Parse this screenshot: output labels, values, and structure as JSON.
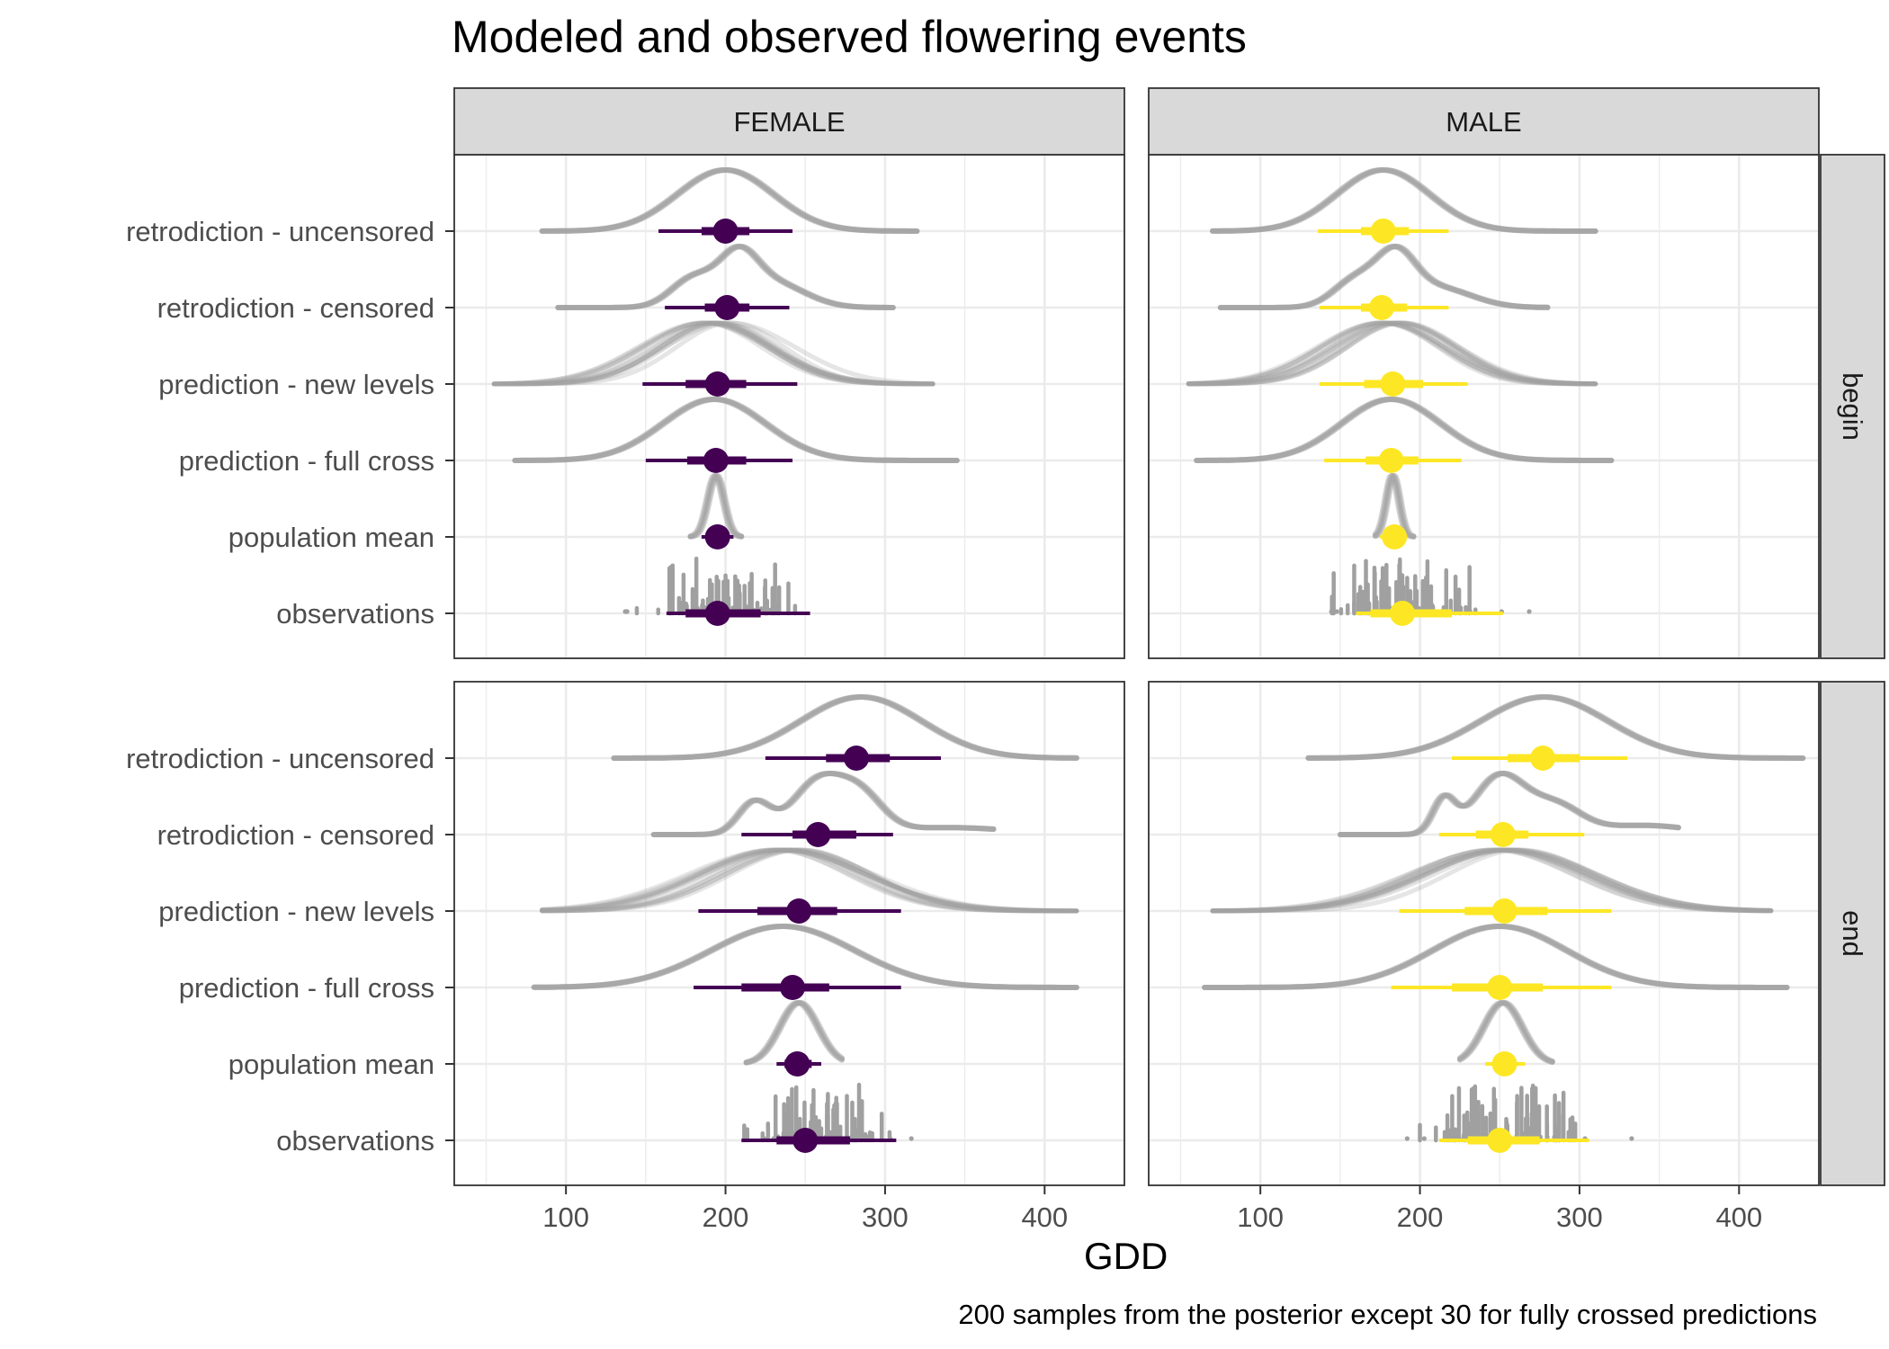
{
  "chart_data": {
    "type": "faceted-halfeye",
    "title": "Modeled and observed flowering events",
    "xlabel": "GDD",
    "caption": "200 samples from the posterior except 30 for fully crossed predictions",
    "xlim": [
      30,
      450
    ],
    "x_ticks": [
      100,
      200,
      300,
      400
    ],
    "columns": [
      "FEMALE",
      "MALE"
    ],
    "rows": [
      "begin",
      "end"
    ],
    "categories": [
      "retrodiction - uncensored",
      "retrodiction - censored",
      "prediction - new levels",
      "prediction - full cross",
      "population mean",
      "observations"
    ],
    "colors": {
      "FEMALE": "#440154",
      "MALE": "#FDE725",
      "density": "#A0A0A0",
      "strip": "#D9D9D9",
      "grid": "#EBEBEB"
    },
    "panels": [
      {
        "column": "FEMALE",
        "row": "begin",
        "points": [
          {
            "category": "retrodiction - uncensored",
            "point": 200,
            "inner": [
              185,
              215
            ],
            "outer": [
              158,
              242
            ]
          },
          {
            "category": "retrodiction - censored",
            "point": 201,
            "inner": [
              187,
              215
            ],
            "outer": [
              162,
              240
            ]
          },
          {
            "category": "prediction - new levels",
            "point": 195,
            "inner": [
              175,
              213
            ],
            "outer": [
              148,
              245
            ]
          },
          {
            "category": "prediction - full cross",
            "point": 194,
            "inner": [
              176,
              213
            ],
            "outer": [
              150,
              242
            ]
          },
          {
            "category": "population mean",
            "point": 195,
            "inner": [
              189,
              201
            ],
            "outer": [
              185,
              205
            ]
          },
          {
            "category": "observations",
            "point": 195,
            "inner": [
              175,
              222
            ],
            "outer": [
              163,
              253
            ]
          }
        ]
      },
      {
        "column": "MALE",
        "row": "begin",
        "points": [
          {
            "category": "retrodiction - uncensored",
            "point": 177,
            "inner": [
              163,
              193
            ],
            "outer": [
              136,
              218
            ]
          },
          {
            "category": "retrodiction - censored",
            "point": 176,
            "inner": [
              163,
              192
            ],
            "outer": [
              137,
              218
            ]
          },
          {
            "category": "prediction - new levels",
            "point": 183,
            "inner": [
              165,
              202
            ],
            "outer": [
              137,
              230
            ]
          },
          {
            "category": "prediction - full cross",
            "point": 182,
            "inner": [
              166,
              199
            ],
            "outer": [
              140,
              226
            ]
          },
          {
            "category": "population mean",
            "point": 184,
            "inner": [
              178,
              189
            ],
            "outer": [
              175,
              192
            ]
          },
          {
            "category": "observations",
            "point": 189,
            "inner": [
              169,
              220
            ],
            "outer": [
              160,
              252
            ]
          }
        ]
      },
      {
        "column": "FEMALE",
        "row": "end",
        "points": [
          {
            "category": "retrodiction - uncensored",
            "point": 282,
            "inner": [
              263,
              303
            ],
            "outer": [
              225,
              335
            ]
          },
          {
            "category": "retrodiction - censored",
            "point": 258,
            "inner": [
              242,
              282
            ],
            "outer": [
              210,
              305
            ]
          },
          {
            "category": "prediction - new levels",
            "point": 246,
            "inner": [
              220,
              270
            ],
            "outer": [
              183,
              310
            ]
          },
          {
            "category": "prediction - full cross",
            "point": 242,
            "inner": [
              210,
              265
            ],
            "outer": [
              180,
              310
            ]
          },
          {
            "category": "population mean",
            "point": 245,
            "inner": [
              237,
              254
            ],
            "outer": [
              232,
              260
            ]
          },
          {
            "category": "observations",
            "point": 250,
            "inner": [
              232,
              278
            ],
            "outer": [
              210,
              307
            ]
          }
        ]
      },
      {
        "column": "MALE",
        "row": "end",
        "points": [
          {
            "category": "retrodiction - uncensored",
            "point": 277,
            "inner": [
              255,
              300
            ],
            "outer": [
              220,
              330
            ]
          },
          {
            "category": "retrodiction - censored",
            "point": 252,
            "inner": [
              235,
              268
            ],
            "outer": [
              212,
              303
            ]
          },
          {
            "category": "prediction - new levels",
            "point": 253,
            "inner": [
              228,
              280
            ],
            "outer": [
              187,
              320
            ]
          },
          {
            "category": "prediction - full cross",
            "point": 250,
            "inner": [
              220,
              277
            ],
            "outer": [
              182,
              320
            ]
          },
          {
            "category": "population mean",
            "point": 253,
            "inner": [
              246,
              260
            ],
            "outer": [
              241,
              266
            ]
          },
          {
            "category": "observations",
            "point": 250,
            "inner": [
              230,
              275
            ],
            "outer": [
              212,
              306
            ]
          }
        ]
      }
    ]
  }
}
